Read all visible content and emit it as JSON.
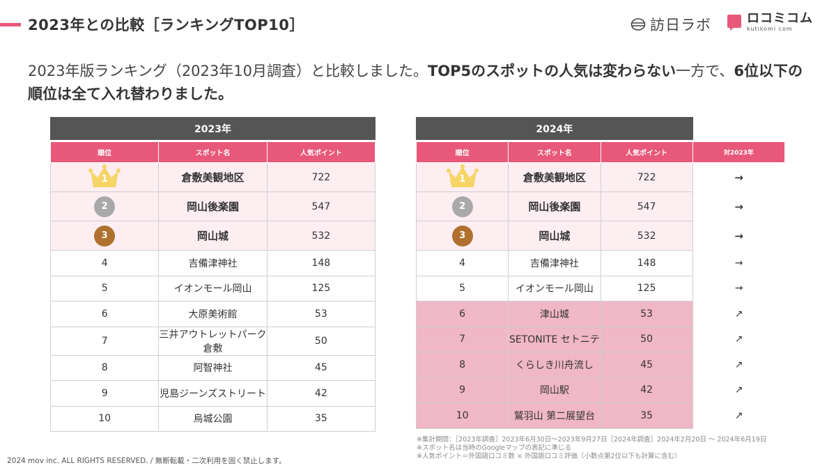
{
  "header": {
    "title": "2023年との比較［ランキングTOP10］",
    "logo_primary": "訪日ラボ",
    "logo_secondary_main": "ロコミコム",
    "logo_secondary_sub": "kutikomi com"
  },
  "intro": {
    "part1": "2023年版ランキング（2023年10月調査）と比較しました。",
    "part2": "TOP5のスポットの人気は変わらない",
    "part3": "一方で、",
    "part4": "6位以下の順位は全て入れ替わりました。"
  },
  "columns": {
    "rank": "順位",
    "spot": "スポット名",
    "points": "人気ポイント",
    "vs": "対2023年"
  },
  "table_2023": {
    "year": "2023年",
    "rows": [
      {
        "rank": "1",
        "spot": "倉敷美観地区",
        "points": "722"
      },
      {
        "rank": "2",
        "spot": "岡山後楽園",
        "points": "547"
      },
      {
        "rank": "3",
        "spot": "岡山城",
        "points": "532"
      },
      {
        "rank": "4",
        "spot": "吉備津神社",
        "points": "148"
      },
      {
        "rank": "5",
        "spot": "イオンモール岡山",
        "points": "125"
      },
      {
        "rank": "6",
        "spot": "大原美術館",
        "points": "53"
      },
      {
        "rank": "7",
        "spot": "三井アウトレットパーク倉敷",
        "points": "50"
      },
      {
        "rank": "8",
        "spot": "阿智神社",
        "points": "45"
      },
      {
        "rank": "9",
        "spot": "児島ジーンズストリート",
        "points": "42"
      },
      {
        "rank": "10",
        "spot": "烏城公園",
        "points": "35"
      }
    ]
  },
  "table_2024": {
    "year": "2024年",
    "rows": [
      {
        "rank": "1",
        "spot": "倉敷美観地区",
        "points": "722",
        "vs": "→"
      },
      {
        "rank": "2",
        "spot": "岡山後楽園",
        "points": "547",
        "vs": "→"
      },
      {
        "rank": "3",
        "spot": "岡山城",
        "points": "532",
        "vs": "→"
      },
      {
        "rank": "4",
        "spot": "吉備津神社",
        "points": "148",
        "vs": "→"
      },
      {
        "rank": "5",
        "spot": "イオンモール岡山",
        "points": "125",
        "vs": "→"
      },
      {
        "rank": "6",
        "spot": "津山城",
        "points": "53",
        "vs": "↗"
      },
      {
        "rank": "7",
        "spot": "SETONITE セトニテ",
        "points": "50",
        "vs": "↗"
      },
      {
        "rank": "8",
        "spot": "くらしき川舟流し",
        "points": "45",
        "vs": "↗"
      },
      {
        "rank": "9",
        "spot": "岡山駅",
        "points": "42",
        "vs": "↗"
      },
      {
        "rank": "10",
        "spot": "鷲羽山 第二展望台",
        "points": "35",
        "vs": "↗"
      }
    ]
  },
  "notes": [
    "※集計期間：［2023年調査］2023年6月30日〜2023年9月27日［2024年調査］2024年2月20日 〜 2024年6月19日",
    "※スポット名は当時のGoogleマップの表記に準じる",
    "※人気ポイント＝外国語口コミ数 × 外国語口コミ評価（小数点第2位以下も計算に含む）"
  ],
  "footer": {
    "copyright": "2024 mov inc. ALL RIGHTS RESERVED. / 無断転載・二次利用を固く禁止します。"
  },
  "colors": {
    "accent": "#e8587a",
    "header_dark": "#555555",
    "top3_bg": "#fdeef2",
    "changed_bg": "#f0b7c6",
    "gold": "#f5d566",
    "silver": "#a9a9a9",
    "bronze": "#b0702e"
  }
}
